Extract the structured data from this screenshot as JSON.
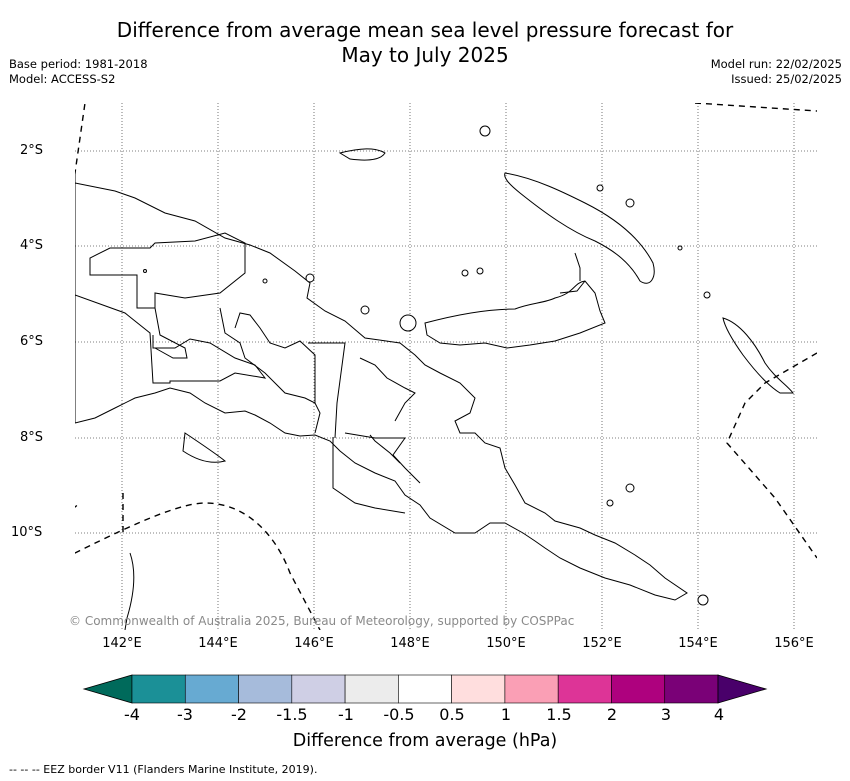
{
  "title_line1": "Difference from average mean sea level pressure forecast for",
  "title_line2": "May to July 2025",
  "base_period": "Base period: 1981-2018",
  "model": "Model: ACCESS-S2",
  "model_run": "Model run: 22/02/2025",
  "issued": "Issued: 25/02/2025",
  "lat_labels": [
    "2°S",
    "4°S",
    "6°S",
    "8°S",
    "10°S"
  ],
  "lon_labels": [
    "142°E",
    "144°E",
    "146°E",
    "148°E",
    "150°E",
    "152°E",
    "154°E",
    "156°E"
  ],
  "copyright": "© Commonwealth of Australia 2025, Bureau of Meteorology, supported by COSPPac",
  "colorbar": {
    "title": "Difference from average (hPa)",
    "tick_labels": [
      "-4",
      "-3",
      "-2",
      "-1.5",
      "-1",
      "-0.5",
      "0.5",
      "1",
      "1.5",
      "2",
      "3",
      "4"
    ],
    "colors": {
      "below_min": "#006a5b",
      "bins": [
        "#1b9097",
        "#67aad2",
        "#a6bbdb",
        "#cfcfe5",
        "#ececec",
        "#ffffff",
        "#ffdede",
        "#fa9fb5",
        "#dd3497",
        "#ae017e",
        "#7a0177"
      ],
      "above_max": "#49006a"
    }
  },
  "footer": "--  --  -- EEZ border V11 (Flanders Marine Institute, 2019)."
}
